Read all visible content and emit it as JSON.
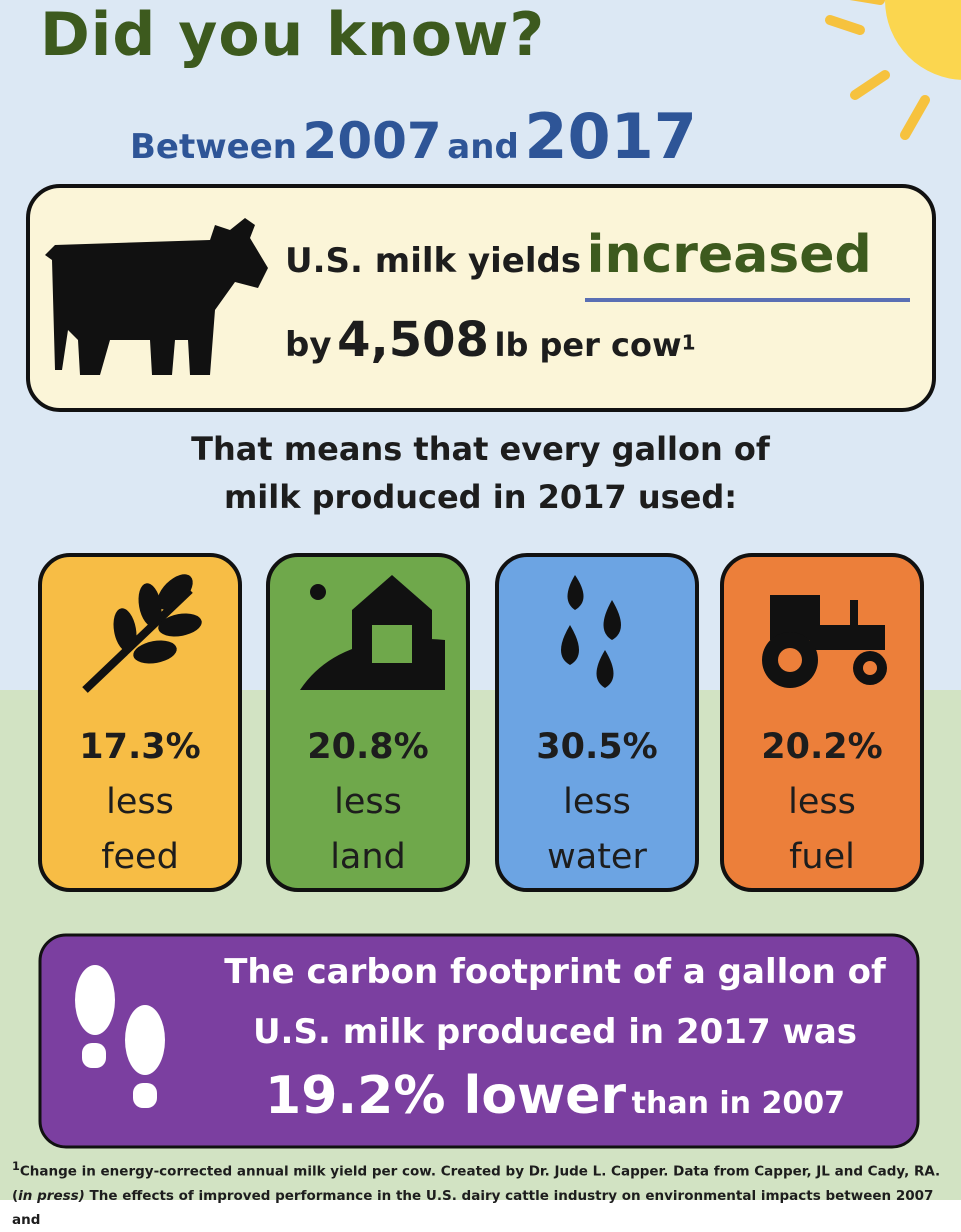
{
  "header": {
    "title": "Did you know?",
    "between": "Between",
    "year_start": "2007",
    "and": "and",
    "year_end": "2017"
  },
  "milk_box": {
    "line1": "U.S. milk yields",
    "emphasis": "increased",
    "by": "by",
    "amount": "4,508",
    "unit": "lb per cow",
    "footnote_mark": "1"
  },
  "intro": {
    "line1": "That means that every gallon of",
    "line2": "milk produced in 2017 used:"
  },
  "cards": [
    {
      "value": "17.3%",
      "word": "less",
      "resource": "feed"
    },
    {
      "value": "20.8%",
      "word": "less",
      "resource": "land"
    },
    {
      "value": "30.5%",
      "word": "less",
      "resource": "water"
    },
    {
      "value": "20.2%",
      "word": "less",
      "resource": "fuel"
    }
  ],
  "carbon": {
    "line1": "The carbon footprint of a gallon of",
    "line2": "U.S. milk produced in 2017 was",
    "value": "19.2% lower",
    "tail": "than in 2007"
  },
  "footnote": {
    "mark": "1",
    "text1": "Change in energy-corrected annual milk yield per cow. Created by Dr. Jude L. Capper. Data from Capper, JL and Cady, RA. (",
    "italic1": "in",
    "italic2": "press)",
    "text2": " The effects of improved performance in the U.S. dairy cattle industry on environmental impacts between 2007 and"
  }
}
